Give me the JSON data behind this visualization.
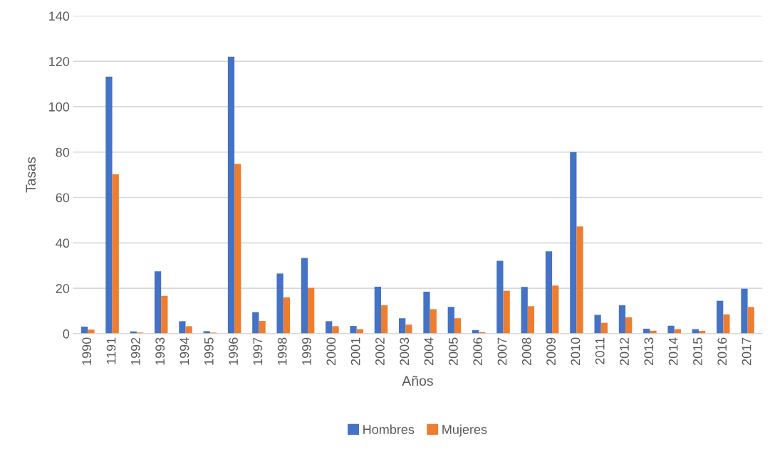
{
  "chart_data": {
    "type": "bar",
    "xlabel": "Años",
    "ylabel": "Tasas",
    "categories": [
      "1990",
      "1191",
      "1992",
      "1993",
      "1994",
      "1995",
      "1996",
      "1997",
      "1998",
      "1999",
      "2000",
      "2001",
      "2002",
      "2003",
      "2004",
      "2005",
      "2006",
      "2007",
      "2008",
      "2009",
      "2010",
      "2011",
      "2012",
      "2013",
      "2014",
      "2015",
      "2016",
      "2017"
    ],
    "series": [
      {
        "name": "Hombres",
        "color": "#4472c4",
        "values": [
          3.1,
          113.2,
          1.0,
          27.5,
          5.5,
          1.1,
          122,
          9.5,
          26.5,
          33.4,
          5.5,
          3.4,
          20.7,
          6.8,
          18.5,
          11.8,
          1.6,
          32.1,
          20.6,
          36.3,
          80,
          8.3,
          12.5,
          2.2,
          3.5,
          2.0,
          14.5,
          19.8
        ]
      },
      {
        "name": "Mujeres",
        "color": "#ed7d31",
        "values": [
          1.8,
          70.2,
          0.5,
          16.7,
          3.3,
          0.5,
          74.8,
          5.6,
          16.0,
          20.2,
          3.3,
          2.0,
          12.5,
          4.0,
          10.8,
          6.8,
          0.7,
          18.9,
          12.1,
          21.2,
          47.2,
          4.8,
          7.2,
          1.3,
          2.0,
          1.2,
          8.5,
          11.7
        ]
      }
    ],
    "ylim": [
      0,
      140
    ],
    "yticks": [
      0,
      20,
      40,
      60,
      80,
      100,
      120,
      140
    ],
    "grid": "y",
    "legend": "bottom"
  }
}
